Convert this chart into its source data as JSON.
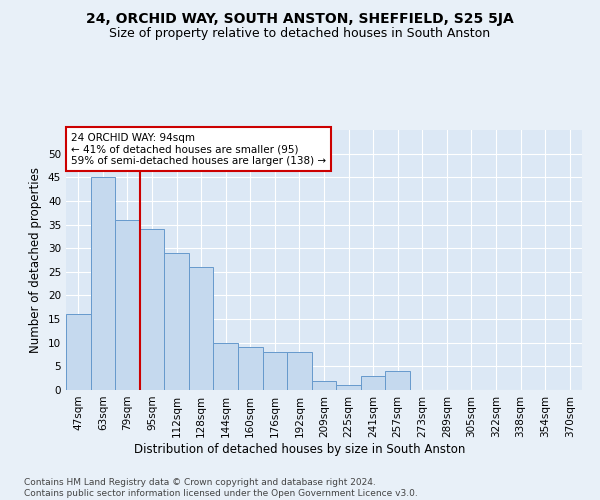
{
  "title": "24, ORCHID WAY, SOUTH ANSTON, SHEFFIELD, S25 5JA",
  "subtitle": "Size of property relative to detached houses in South Anston",
  "xlabel": "Distribution of detached houses by size in South Anston",
  "ylabel": "Number of detached properties",
  "categories": [
    "47sqm",
    "63sqm",
    "79sqm",
    "95sqm",
    "112sqm",
    "128sqm",
    "144sqm",
    "160sqm",
    "176sqm",
    "192sqm",
    "209sqm",
    "225sqm",
    "241sqm",
    "257sqm",
    "273sqm",
    "289sqm",
    "305sqm",
    "322sqm",
    "338sqm",
    "354sqm",
    "370sqm"
  ],
  "values": [
    16,
    45,
    36,
    34,
    29,
    26,
    10,
    9,
    8,
    8,
    2,
    1,
    3,
    4,
    0,
    0,
    0,
    0,
    0,
    0,
    0
  ],
  "bar_color": "#c5d9ee",
  "bar_edge_color": "#6699cc",
  "vline_color": "#cc0000",
  "annotation_text": "24 ORCHID WAY: 94sqm\n← 41% of detached houses are smaller (95)\n59% of semi-detached houses are larger (138) →",
  "annotation_box_color": "#ffffff",
  "annotation_box_edge": "#cc0000",
  "ylim": [
    0,
    55
  ],
  "yticks": [
    0,
    5,
    10,
    15,
    20,
    25,
    30,
    35,
    40,
    45,
    50
  ],
  "bg_color": "#dce8f5",
  "grid_color": "#ffffff",
  "fig_bg_color": "#e8f0f8",
  "footer": "Contains HM Land Registry data © Crown copyright and database right 2024.\nContains public sector information licensed under the Open Government Licence v3.0.",
  "title_fontsize": 10,
  "subtitle_fontsize": 9,
  "axis_label_fontsize": 8.5,
  "tick_fontsize": 7.5,
  "footer_fontsize": 6.5
}
